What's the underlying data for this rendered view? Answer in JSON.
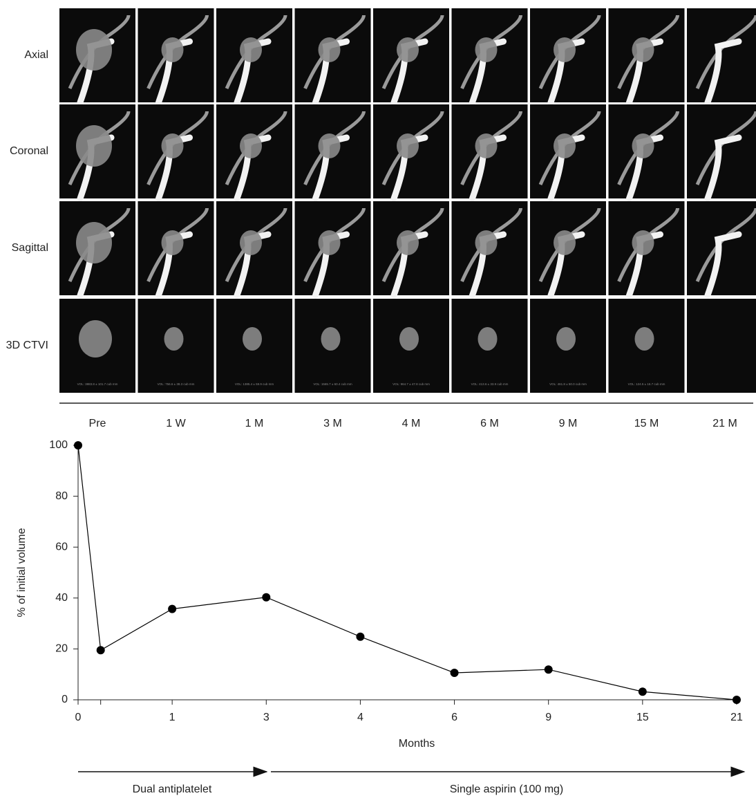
{
  "figure": {
    "row_labels": [
      "Axial",
      "Coronal",
      "Sagittal",
      "3D CTVI"
    ],
    "column_labels": [
      "Pre",
      "1 W",
      "1 M",
      "3 M",
      "4 M",
      "6 M",
      "9 M",
      "15 M",
      "21 M"
    ],
    "volume_labels": [
      "VOL: 3883.8 ± 101.7 cub mm",
      "VOL: 756.6 ± 38.3 cub mm",
      "VOL: 1385.4 ± 59.9 cub mm",
      "VOL: 1565.7 ± 60.4 cub mm",
      "VOL: 964.7 ± 47.8 cub mm",
      "VOL: 413.6 ± 33.9 cub mm",
      "VOL: 461.8 ± 50.0 cub mm",
      "VOL: 124.5 ± 16.7 cub mm"
    ]
  },
  "chart_data": {
    "type": "line",
    "x_label": "Months",
    "y_label": "% of initial volume",
    "categories": [
      "0",
      null,
      "1",
      "3",
      "4",
      "6",
      "9",
      "15",
      "21"
    ],
    "values": [
      100,
      19.5,
      35.7,
      40.3,
      24.8,
      10.6,
      11.9,
      3.2,
      0
    ],
    "color": "#000000",
    "ylim": [
      0,
      100
    ],
    "yticks": [
      0,
      20,
      40,
      60,
      80,
      100
    ],
    "annotations": [
      "Dual antiplatelet",
      "Single aspirin (100 mg)"
    ]
  }
}
